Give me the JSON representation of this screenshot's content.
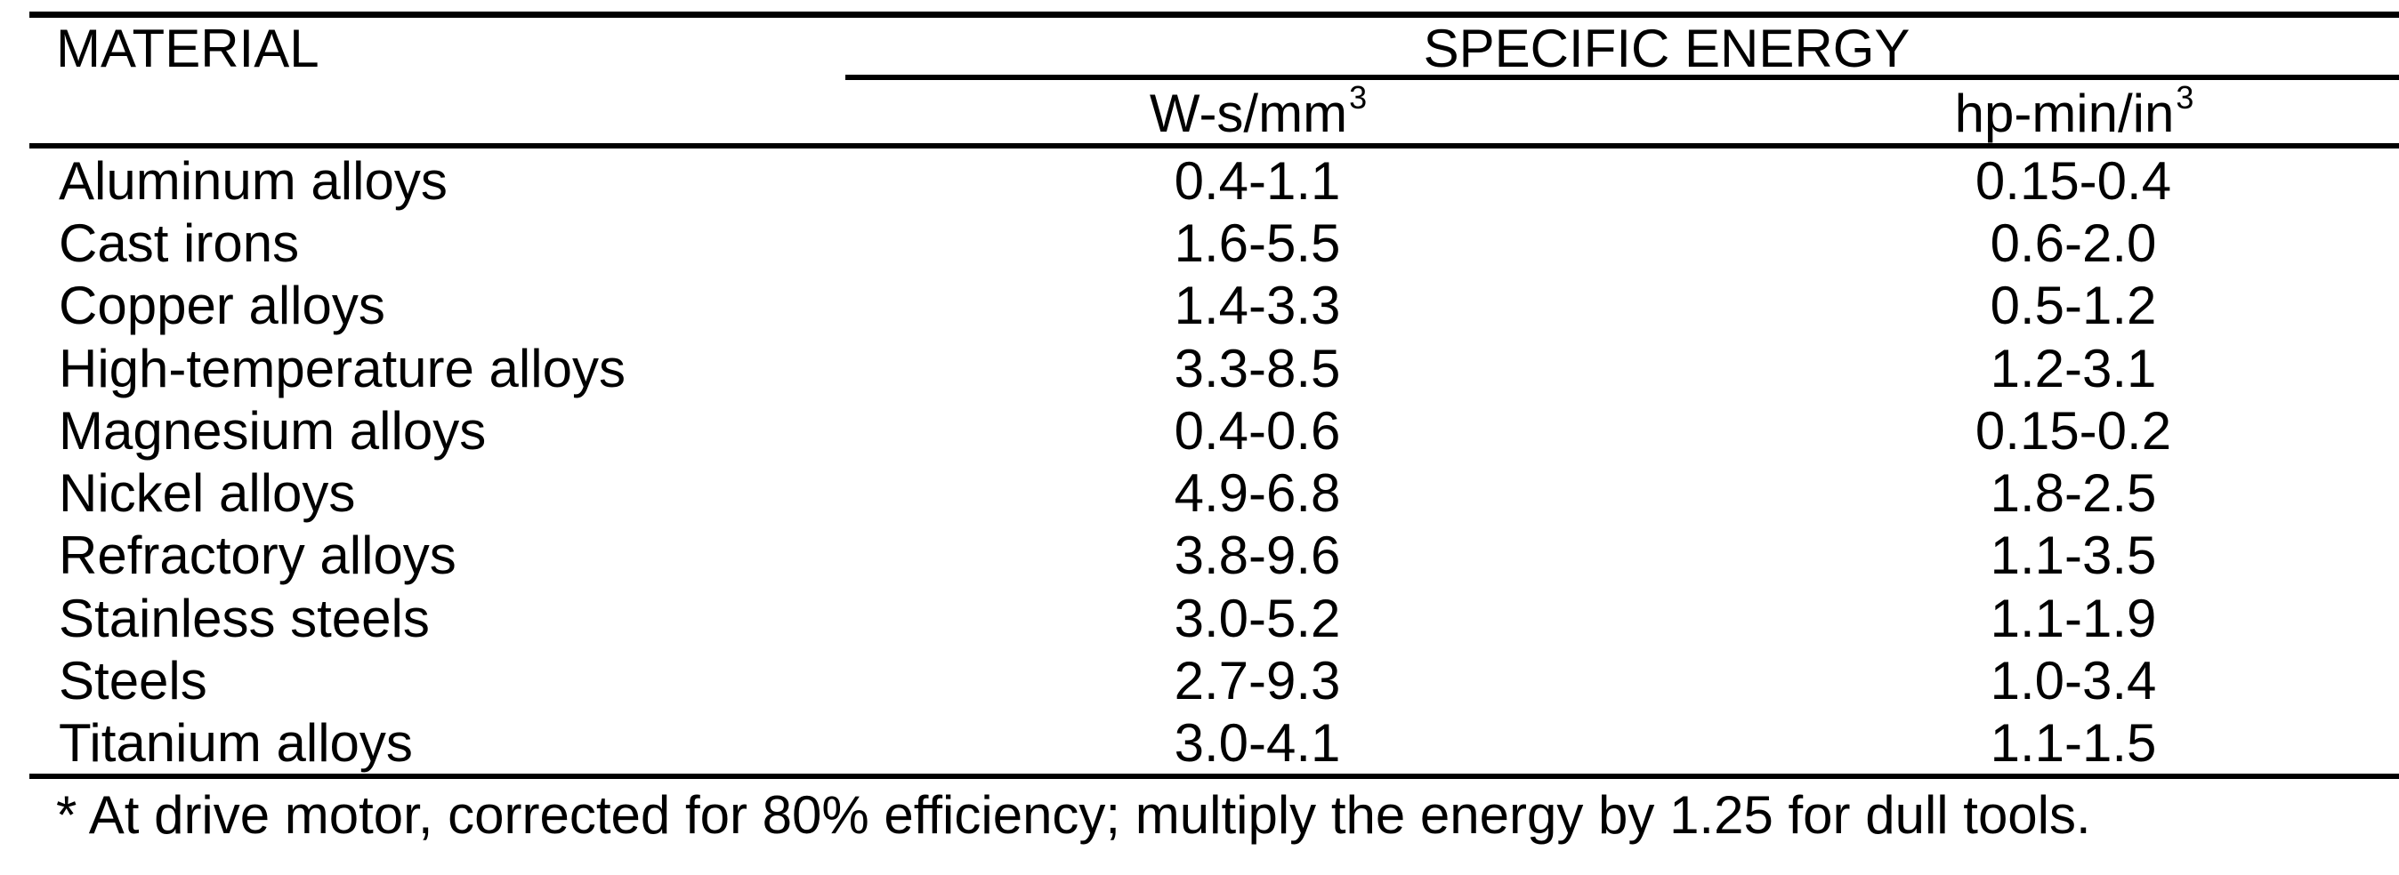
{
  "page": {
    "background_color": "#ffffff",
    "text_color": "#000000"
  },
  "table": {
    "col1_header": "MATERIAL",
    "group_header": "SPECIFIC ENERGY",
    "unit_columns": [
      {
        "base": "W-s/mm",
        "sup": "3"
      },
      {
        "base": "hp-min/in",
        "sup": "3"
      }
    ],
    "rows": [
      {
        "material": "Aluminum alloys",
        "w_s_mm3": "0.4-1.1",
        "hp_min_in3": "0.15-0.4"
      },
      {
        "material": "Cast irons",
        "w_s_mm3": "1.6-5.5",
        "hp_min_in3": "0.6-2.0"
      },
      {
        "material": "Copper alloys",
        "w_s_mm3": "1.4-3.3",
        "hp_min_in3": "0.5-1.2"
      },
      {
        "material": "High-temperature alloys",
        "w_s_mm3": "3.3-8.5",
        "hp_min_in3": "1.2-3.1"
      },
      {
        "material": "Magnesium alloys",
        "w_s_mm3": "0.4-0.6",
        "hp_min_in3": "0.15-0.2"
      },
      {
        "material": "Nickel alloys",
        "w_s_mm3": "4.9-6.8",
        "hp_min_in3": "1.8-2.5"
      },
      {
        "material": "Refractory alloys",
        "w_s_mm3": "3.8-9.6",
        "hp_min_in3": "1.1-3.5"
      },
      {
        "material": "Stainless steels",
        "w_s_mm3": "3.0-5.2",
        "hp_min_in3": "1.1-1.9"
      },
      {
        "material": "Steels",
        "w_s_mm3": "2.7-9.3",
        "hp_min_in3": "1.0-3.4"
      },
      {
        "material": "Titanium alloys",
        "w_s_mm3": "3.0-4.1",
        "hp_min_in3": "1.1-1.5"
      }
    ]
  },
  "footnote": "* At drive motor, corrected for 80% efficiency; multiply the energy by 1.25 for dull tools."
}
